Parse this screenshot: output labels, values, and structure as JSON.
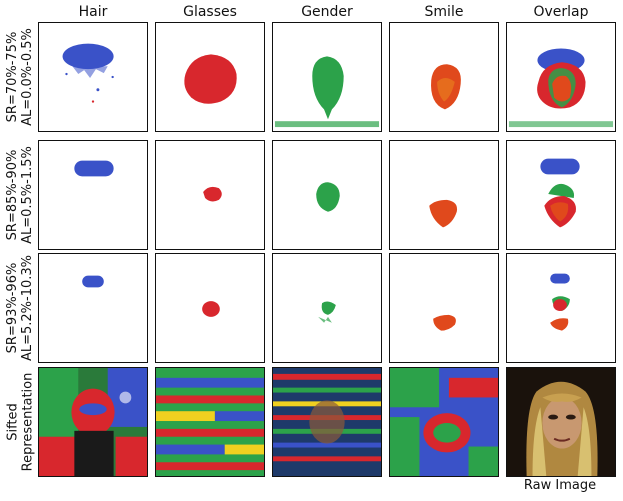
{
  "columns": [
    "Hair",
    "Glasses",
    "Gender",
    "Smile",
    "Overlap"
  ],
  "rows": [
    {
      "sr": "SR=70%-75%",
      "al": "AL=0.0%-0.5%"
    },
    {
      "sr": "SR=85%-90%",
      "al": "AL=0.5%-1.5%"
    },
    {
      "sr": "SR=93%-96%",
      "al": "AL=5.2%-10.3%"
    },
    {
      "sr": "Sifted",
      "al": "Representation"
    }
  ],
  "raw_caption": "Raw Image",
  "colors": {
    "hair": "#3a52c8",
    "glasses": "#d8272d",
    "gender": "#2ca24a",
    "smile": "#e0491c",
    "smile_dot": "#f0b020"
  }
}
